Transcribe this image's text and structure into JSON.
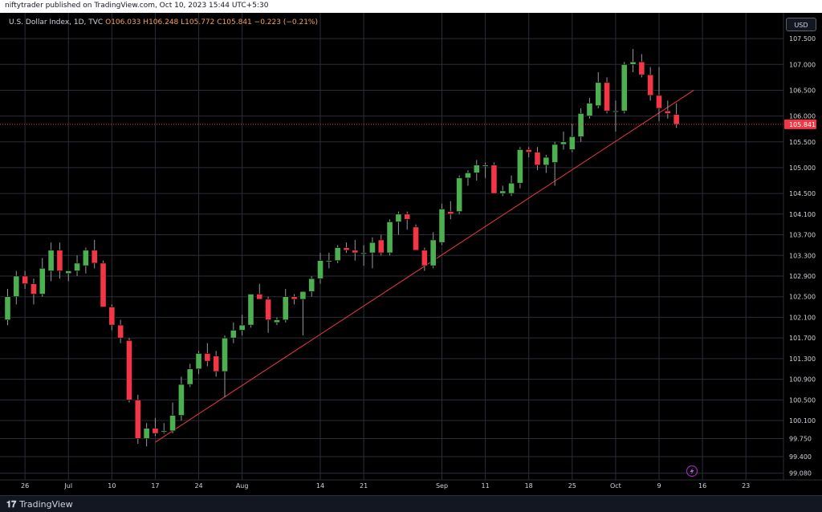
{
  "header": {
    "publisher": "niftytrader published on TradingView.com, Oct 10, 2023 15:44 UTC+5:30"
  },
  "legend": {
    "symbol": "U.S. Dollar Index, 1D, TVC",
    "open_label": "O",
    "open": "106.033",
    "high_label": "H",
    "high": "106.248",
    "low_label": "L",
    "low": "105.772",
    "close_label": "C",
    "close": "105.841",
    "change": "−0.223 (−0.21%)"
  },
  "currency_button": "USD",
  "footer": {
    "logo": "TradingView"
  },
  "colors": {
    "background": "#000000",
    "up": "#4caf50",
    "down": "#f23645",
    "trendline": "#f23645",
    "grid": "#2a2e39",
    "axis_text": "#d1d4dc"
  },
  "chart_data": {
    "type": "candlestick",
    "symbol": "U.S. Dollar Index",
    "timeframe": "1D",
    "exchange": "TVC",
    "ylim": [
      98.95,
      108.0
    ],
    "y_ticks": [
      {
        "value": 107.5,
        "label": "107.500"
      },
      {
        "value": 107.0,
        "label": "107.000"
      },
      {
        "value": 106.5,
        "label": "106.500"
      },
      {
        "value": 106.0,
        "label": "106.000"
      },
      {
        "value": 105.5,
        "label": "105.500"
      },
      {
        "value": 105.0,
        "label": "105.000"
      },
      {
        "value": 104.5,
        "label": "104.500"
      },
      {
        "value": 104.1,
        "label": "104.100"
      },
      {
        "value": 103.7,
        "label": "103.700"
      },
      {
        "value": 103.3,
        "label": "103.300"
      },
      {
        "value": 102.9,
        "label": "102.900"
      },
      {
        "value": 102.5,
        "label": "102.500"
      },
      {
        "value": 102.1,
        "label": "102.100"
      },
      {
        "value": 101.7,
        "label": "101.700"
      },
      {
        "value": 101.3,
        "label": "101.300"
      },
      {
        "value": 100.9,
        "label": "100.900"
      },
      {
        "value": 100.5,
        "label": "100.500"
      },
      {
        "value": 100.1,
        "label": "100.100"
      },
      {
        "value": 99.75,
        "label": "99.750"
      },
      {
        "value": 99.4,
        "label": "99.400"
      },
      {
        "value": 99.08,
        "label": "99.080"
      }
    ],
    "x_ticks": [
      {
        "index": 2,
        "label": "26"
      },
      {
        "index": 7,
        "label": "Jul"
      },
      {
        "index": 12,
        "label": "10"
      },
      {
        "index": 17,
        "label": "17"
      },
      {
        "index": 22,
        "label": "24"
      },
      {
        "index": 27,
        "label": "Aug"
      },
      {
        "index": 36,
        "label": "14"
      },
      {
        "index": 41,
        "label": "21"
      },
      {
        "index": 50,
        "label": "Sep"
      },
      {
        "index": 55,
        "label": "11"
      },
      {
        "index": 60,
        "label": "18"
      },
      {
        "index": 65,
        "label": "25"
      },
      {
        "index": 70,
        "label": "Oct"
      },
      {
        "index": 75,
        "label": "9"
      },
      {
        "index": 80,
        "label": "16"
      },
      {
        "index": 85,
        "label": "23"
      }
    ],
    "candles": [
      {
        "o": 102.05,
        "h": 102.65,
        "l": 101.95,
        "c": 102.5
      },
      {
        "o": 102.5,
        "h": 103.0,
        "l": 102.35,
        "c": 102.9
      },
      {
        "o": 102.9,
        "h": 103.0,
        "l": 102.65,
        "c": 102.75
      },
      {
        "o": 102.75,
        "h": 102.85,
        "l": 102.35,
        "c": 102.55
      },
      {
        "o": 102.55,
        "h": 103.25,
        "l": 102.5,
        "c": 103.05
      },
      {
        "o": 103.0,
        "h": 103.55,
        "l": 102.8,
        "c": 103.4
      },
      {
        "o": 103.4,
        "h": 103.55,
        "l": 102.85,
        "c": 103.0
      },
      {
        "o": 102.95,
        "h": 103.0,
        "l": 102.8,
        "c": 103.0
      },
      {
        "o": 103.0,
        "h": 103.3,
        "l": 102.9,
        "c": 103.15
      },
      {
        "o": 103.1,
        "h": 103.45,
        "l": 102.95,
        "c": 103.4
      },
      {
        "o": 103.4,
        "h": 103.6,
        "l": 103.05,
        "c": 103.15
      },
      {
        "o": 103.15,
        "h": 103.2,
        "l": 102.3,
        "c": 102.3
      },
      {
        "o": 102.3,
        "h": 102.35,
        "l": 101.85,
        "c": 101.95
      },
      {
        "o": 101.95,
        "h": 102.05,
        "l": 101.6,
        "c": 101.7
      },
      {
        "o": 101.65,
        "h": 101.7,
        "l": 100.45,
        "c": 100.5
      },
      {
        "o": 100.5,
        "h": 100.6,
        "l": 99.65,
        "c": 99.75
      },
      {
        "o": 99.75,
        "h": 100.05,
        "l": 99.6,
        "c": 99.95
      },
      {
        "o": 99.95,
        "h": 100.15,
        "l": 99.8,
        "c": 99.85
      },
      {
        "o": 99.9,
        "h": 100.05,
        "l": 99.85,
        "c": 99.9
      },
      {
        "o": 99.9,
        "h": 100.45,
        "l": 99.85,
        "c": 100.2
      },
      {
        "o": 100.2,
        "h": 100.95,
        "l": 100.1,
        "c": 100.8
      },
      {
        "o": 100.8,
        "h": 101.2,
        "l": 100.75,
        "c": 101.1
      },
      {
        "o": 101.1,
        "h": 101.45,
        "l": 101.0,
        "c": 101.4
      },
      {
        "o": 101.4,
        "h": 101.6,
        "l": 101.15,
        "c": 101.25
      },
      {
        "o": 101.35,
        "h": 101.45,
        "l": 100.95,
        "c": 101.05
      },
      {
        "o": 101.05,
        "h": 101.75,
        "l": 100.55,
        "c": 101.7
      },
      {
        "o": 101.7,
        "h": 102.0,
        "l": 101.6,
        "c": 101.85
      },
      {
        "o": 101.85,
        "h": 102.15,
        "l": 101.75,
        "c": 101.95
      },
      {
        "o": 101.95,
        "h": 102.5,
        "l": 101.9,
        "c": 102.55
      },
      {
        "o": 102.55,
        "h": 102.75,
        "l": 102.45,
        "c": 102.45
      },
      {
        "o": 102.45,
        "h": 102.5,
        "l": 101.8,
        "c": 102.05
      },
      {
        "o": 102.0,
        "h": 102.1,
        "l": 101.95,
        "c": 102.05
      },
      {
        "o": 102.05,
        "h": 102.65,
        "l": 102.0,
        "c": 102.5
      },
      {
        "o": 102.5,
        "h": 102.55,
        "l": 102.35,
        "c": 102.45
      },
      {
        "o": 102.45,
        "h": 102.6,
        "l": 101.75,
        "c": 102.6
      },
      {
        "o": 102.6,
        "h": 102.9,
        "l": 102.5,
        "c": 102.85
      },
      {
        "o": 102.85,
        "h": 103.35,
        "l": 102.75,
        "c": 103.2
      },
      {
        "o": 103.2,
        "h": 103.35,
        "l": 103.05,
        "c": 103.2
      },
      {
        "o": 103.2,
        "h": 103.5,
        "l": 103.15,
        "c": 103.45
      },
      {
        "o": 103.45,
        "h": 103.55,
        "l": 103.35,
        "c": 103.4
      },
      {
        "o": 103.4,
        "h": 103.6,
        "l": 103.2,
        "c": 103.35
      },
      {
        "o": 103.35,
        "h": 103.5,
        "l": 103.1,
        "c": 103.35
      },
      {
        "o": 103.35,
        "h": 103.65,
        "l": 103.05,
        "c": 103.55
      },
      {
        "o": 103.6,
        "h": 103.7,
        "l": 103.3,
        "c": 103.35
      },
      {
        "o": 103.35,
        "h": 104.0,
        "l": 103.3,
        "c": 103.95
      },
      {
        "o": 103.95,
        "h": 104.15,
        "l": 103.7,
        "c": 104.1
      },
      {
        "o": 104.1,
        "h": 104.15,
        "l": 103.8,
        "c": 104.0
      },
      {
        "o": 103.85,
        "h": 103.9,
        "l": 103.4,
        "c": 103.4
      },
      {
        "o": 103.4,
        "h": 103.45,
        "l": 103.0,
        "c": 103.1
      },
      {
        "o": 103.1,
        "h": 103.75,
        "l": 103.05,
        "c": 103.6
      },
      {
        "o": 103.55,
        "h": 104.3,
        "l": 103.5,
        "c": 104.2
      },
      {
        "o": 104.15,
        "h": 104.35,
        "l": 104.0,
        "c": 104.1
      },
      {
        "o": 104.15,
        "h": 104.85,
        "l": 104.1,
        "c": 104.8
      },
      {
        "o": 104.8,
        "h": 104.95,
        "l": 104.65,
        "c": 104.9
      },
      {
        "o": 104.9,
        "h": 105.15,
        "l": 104.75,
        "c": 105.05
      },
      {
        "o": 105.05,
        "h": 105.1,
        "l": 104.8,
        "c": 105.05
      },
      {
        "o": 105.05,
        "h": 105.1,
        "l": 104.5,
        "c": 104.5
      },
      {
        "o": 104.5,
        "h": 104.65,
        "l": 104.45,
        "c": 104.55
      },
      {
        "o": 104.5,
        "h": 104.85,
        "l": 104.45,
        "c": 104.7
      },
      {
        "o": 104.7,
        "h": 105.4,
        "l": 104.6,
        "c": 105.35
      },
      {
        "o": 105.35,
        "h": 105.4,
        "l": 105.2,
        "c": 105.3
      },
      {
        "o": 105.3,
        "h": 105.4,
        "l": 104.95,
        "c": 105.05
      },
      {
        "o": 105.05,
        "h": 105.25,
        "l": 104.9,
        "c": 105.2
      },
      {
        "o": 105.1,
        "h": 105.5,
        "l": 104.65,
        "c": 105.45
      },
      {
        "o": 105.45,
        "h": 105.7,
        "l": 105.35,
        "c": 105.5
      },
      {
        "o": 105.35,
        "h": 105.85,
        "l": 105.3,
        "c": 105.6
      },
      {
        "o": 105.6,
        "h": 106.15,
        "l": 105.5,
        "c": 106.05
      },
      {
        "o": 106.0,
        "h": 106.35,
        "l": 105.95,
        "c": 106.25
      },
      {
        "o": 106.2,
        "h": 106.85,
        "l": 106.15,
        "c": 106.65
      },
      {
        "o": 106.65,
        "h": 106.75,
        "l": 106.05,
        "c": 106.1
      },
      {
        "o": 106.1,
        "h": 106.3,
        "l": 105.7,
        "c": 106.1
      },
      {
        "o": 106.1,
        "h": 107.05,
        "l": 106.05,
        "c": 107.0
      },
      {
        "o": 107.0,
        "h": 107.3,
        "l": 106.85,
        "c": 107.05
      },
      {
        "o": 107.05,
        "h": 107.2,
        "l": 106.75,
        "c": 106.8
      },
      {
        "o": 106.8,
        "h": 106.95,
        "l": 106.3,
        "c": 106.4
      },
      {
        "o": 106.4,
        "h": 106.95,
        "l": 105.9,
        "c": 106.15
      },
      {
        "o": 106.1,
        "h": 106.3,
        "l": 105.95,
        "c": 106.05
      },
      {
        "o": 106.03,
        "h": 106.248,
        "l": 105.772,
        "c": 105.841
      }
    ],
    "trendline": {
      "from": {
        "index": 17,
        "value": 99.68
      },
      "to": {
        "index": 79,
        "value": 106.5
      }
    },
    "last_price": {
      "value": 105.841,
      "label": "105.841"
    }
  }
}
